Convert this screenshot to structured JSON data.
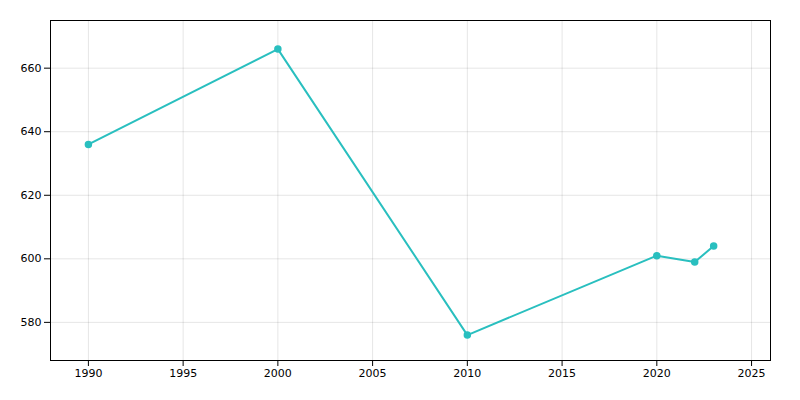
{
  "chart_data": {
    "type": "line",
    "x": [
      1990,
      2000,
      2010,
      2020,
      2022,
      2023
    ],
    "values": [
      636,
      666,
      576,
      601,
      599,
      604
    ],
    "color": "#29BFBF",
    "marker": "circle",
    "xlim": [
      1988,
      2026
    ],
    "ylim": [
      568,
      675
    ],
    "xticks": [
      1990,
      1995,
      2000,
      2005,
      2010,
      2015,
      2020,
      2025
    ],
    "yticks": [
      580,
      600,
      620,
      640,
      660
    ],
    "grid": true
  }
}
